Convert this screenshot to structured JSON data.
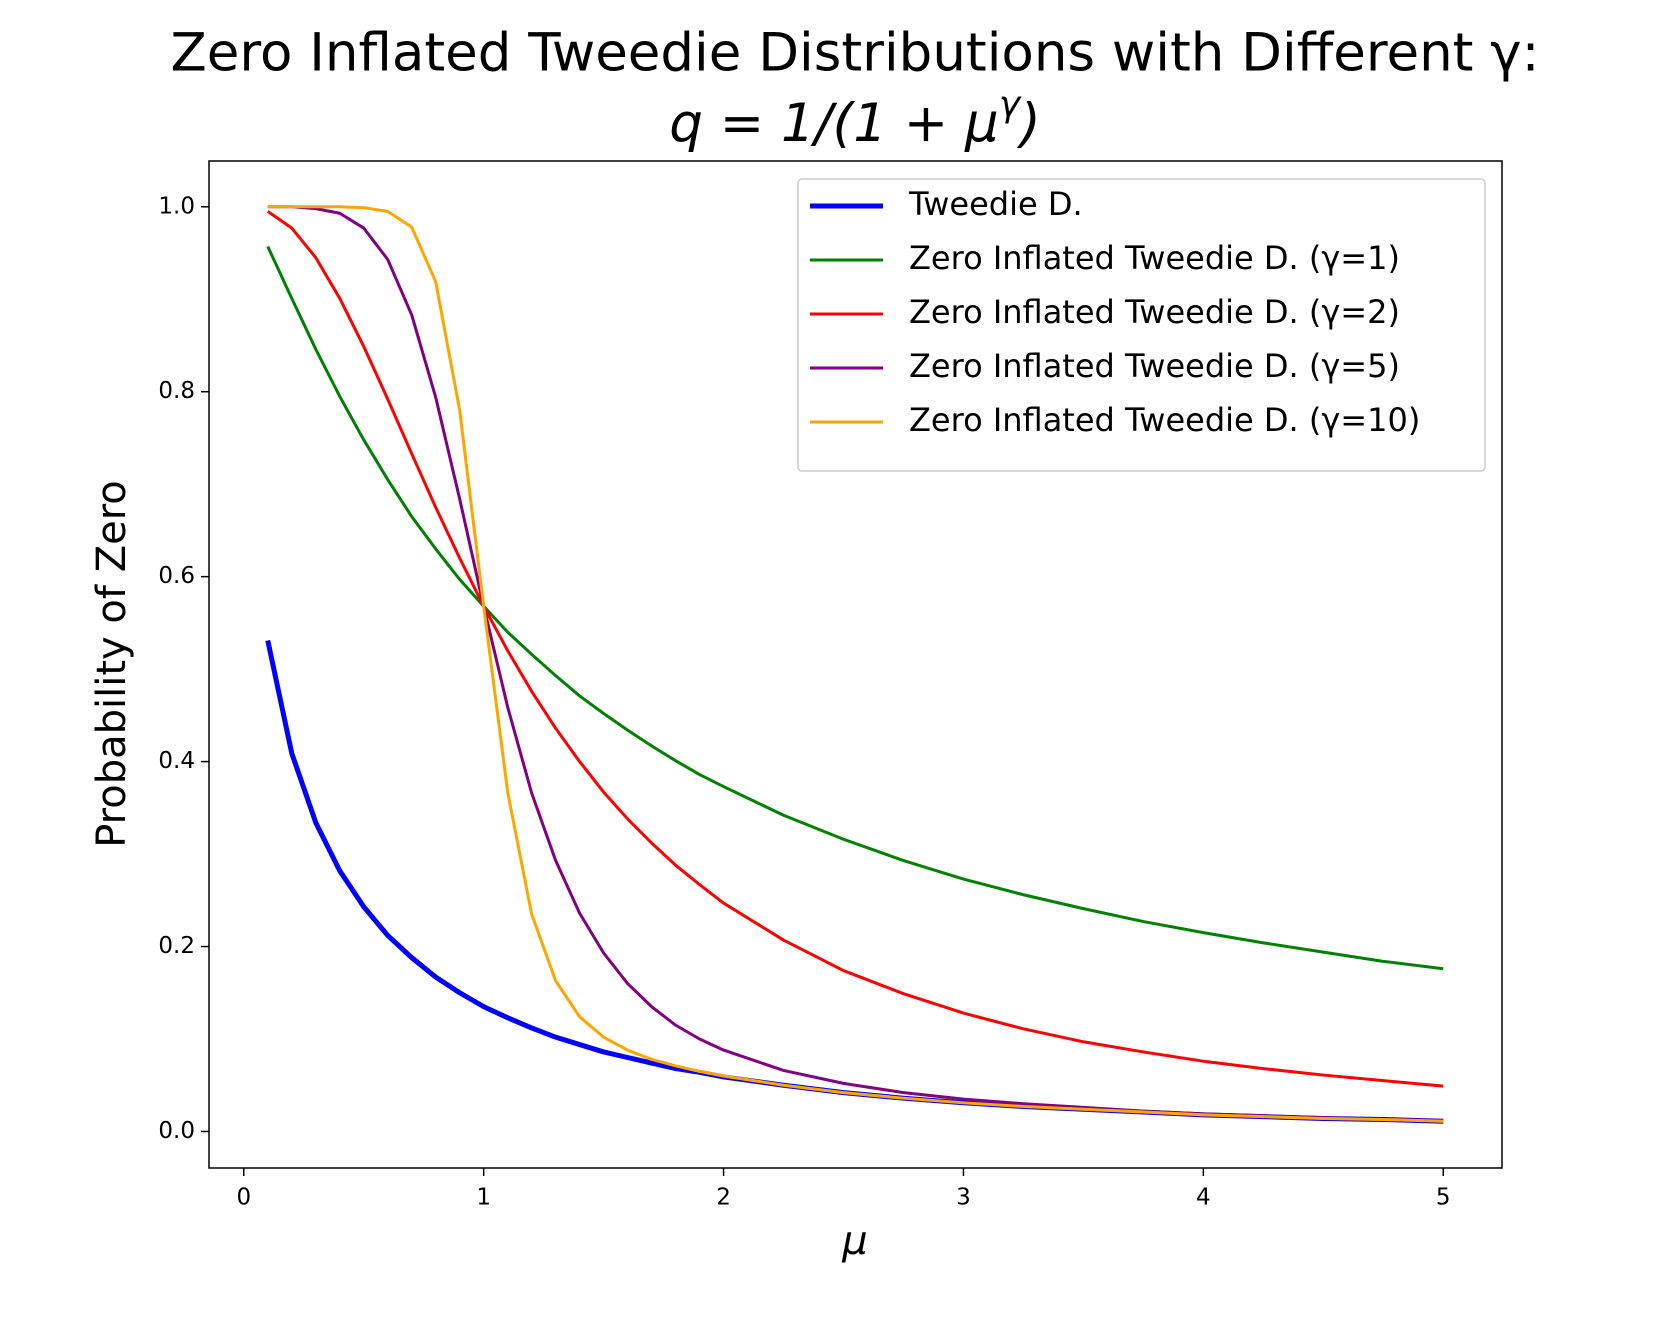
{
  "chart_data": {
    "type": "line",
    "title": "Zero Inflated Tweedie Distributions with Different γ:",
    "subtitle": [
      "q = 1/(1 + μ",
      "γ",
      ")"
    ],
    "x_label": "μ",
    "y_label": "Probability of Zero",
    "x": [
      0.1,
      0.2,
      0.3,
      0.4,
      0.5,
      0.6,
      0.7,
      0.8,
      0.9,
      1.0,
      1.1,
      1.2,
      1.3,
      1.4,
      1.5,
      1.6,
      1.7,
      1.8,
      1.9,
      2.0,
      2.25,
      2.5,
      2.75,
      3.0,
      3.25,
      3.5,
      3.75,
      4.0,
      4.25,
      4.5,
      4.75,
      5.0
    ],
    "series": [
      {
        "name": "Tweedie D.",
        "color": "#0000ff",
        "linewidth": 5,
        "values": [
          0.531,
          0.409,
          0.334,
          0.282,
          0.243,
          0.212,
          0.188,
          0.167,
          0.15,
          0.135,
          0.123,
          0.112,
          0.102,
          0.094,
          0.086,
          0.08,
          0.074,
          0.068,
          0.064,
          0.059,
          0.05,
          0.042,
          0.036,
          0.031,
          0.027,
          0.024,
          0.021,
          0.018,
          0.016,
          0.014,
          0.013,
          0.011
        ]
      },
      {
        "name": "Zero Inflated Tweedie D. (γ=1)",
        "color": "#008000",
        "linewidth": 3,
        "values": [
          0.957,
          0.901,
          0.846,
          0.795,
          0.748,
          0.705,
          0.665,
          0.63,
          0.597,
          0.568,
          0.54,
          0.516,
          0.493,
          0.471,
          0.452,
          0.434,
          0.417,
          0.401,
          0.386,
          0.373,
          0.342,
          0.316,
          0.293,
          0.273,
          0.256,
          0.241,
          0.227,
          0.215,
          0.204,
          0.194,
          0.184,
          0.176
        ]
      },
      {
        "name": "Zero Inflated Tweedie D. (γ=2)",
        "color": "#ff0000",
        "linewidth": 3,
        "values": [
          0.995,
          0.977,
          0.945,
          0.901,
          0.849,
          0.792,
          0.733,
          0.675,
          0.62,
          0.568,
          0.52,
          0.476,
          0.436,
          0.4,
          0.367,
          0.338,
          0.312,
          0.288,
          0.267,
          0.247,
          0.207,
          0.174,
          0.149,
          0.128,
          0.111,
          0.097,
          0.086,
          0.076,
          0.068,
          0.061,
          0.055,
          0.049
        ]
      },
      {
        "name": "Zero Inflated Tweedie D. (γ=5)",
        "color": "#800080",
        "linewidth": 3,
        "values": [
          1.0,
          1.0,
          0.998,
          0.993,
          0.977,
          0.943,
          0.883,
          0.794,
          0.684,
          0.568,
          0.459,
          0.366,
          0.293,
          0.236,
          0.193,
          0.16,
          0.135,
          0.115,
          0.1,
          0.088,
          0.066,
          0.052,
          0.042,
          0.035,
          0.03,
          0.026,
          0.022,
          0.019,
          0.017,
          0.015,
          0.013,
          0.012
        ]
      },
      {
        "name": "Zero Inflated Tweedie D. (γ=10)",
        "color": "#ffa500",
        "linewidth": 3,
        "values": [
          1.0,
          1.0,
          1.0,
          1.0,
          0.999,
          0.995,
          0.978,
          0.919,
          0.78,
          0.568,
          0.367,
          0.235,
          0.163,
          0.124,
          0.102,
          0.088,
          0.078,
          0.071,
          0.065,
          0.06,
          0.05,
          0.042,
          0.036,
          0.031,
          0.027,
          0.024,
          0.021,
          0.018,
          0.016,
          0.014,
          0.013,
          0.011
        ]
      }
    ],
    "xlim": [
      -0.145,
      5.245
    ],
    "ylim": [
      -0.0395,
      1.0495
    ],
    "xticks": [
      0,
      1,
      2,
      3,
      4,
      5
    ],
    "yticks": [
      {
        "value": 0,
        "label": "0.0"
      },
      0.2,
      0.4,
      0.6,
      0.8,
      {
        "value": 1,
        "label": "1.0"
      }
    ],
    "legend": "upper right",
    "grid": false
  }
}
